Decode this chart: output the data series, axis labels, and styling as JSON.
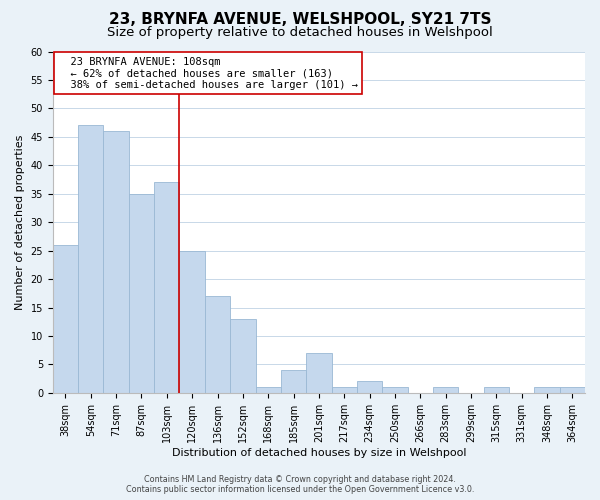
{
  "title": "23, BRYNFA AVENUE, WELSHPOOL, SY21 7TS",
  "subtitle": "Size of property relative to detached houses in Welshpool",
  "xlabel": "Distribution of detached houses by size in Welshpool",
  "ylabel": "Number of detached properties",
  "footer_line1": "Contains HM Land Registry data © Crown copyright and database right 2024.",
  "footer_line2": "Contains public sector information licensed under the Open Government Licence v3.0.",
  "bar_labels": [
    "38sqm",
    "54sqm",
    "71sqm",
    "87sqm",
    "103sqm",
    "120sqm",
    "136sqm",
    "152sqm",
    "168sqm",
    "185sqm",
    "201sqm",
    "217sqm",
    "234sqm",
    "250sqm",
    "266sqm",
    "283sqm",
    "299sqm",
    "315sqm",
    "331sqm",
    "348sqm",
    "364sqm"
  ],
  "bar_values": [
    26,
    47,
    46,
    35,
    37,
    25,
    17,
    13,
    1,
    4,
    7,
    1,
    2,
    1,
    0,
    1,
    0,
    1,
    0,
    1,
    1
  ],
  "bar_color": "#c5d8ed",
  "bar_edge_color": "#9ab8d4",
  "vline_x": 4.5,
  "vline_color": "#cc0000",
  "annotation_title": "23 BRYNFA AVENUE: 108sqm",
  "annotation_line1": "← 62% of detached houses are smaller (163)",
  "annotation_line2": "38% of semi-detached houses are larger (101) →",
  "annotation_box_edge": "#cc0000",
  "annotation_box_bg": "#ffffff",
  "ylim": [
    0,
    60
  ],
  "yticks": [
    0,
    5,
    10,
    15,
    20,
    25,
    30,
    35,
    40,
    45,
    50,
    55,
    60
  ],
  "grid_color": "#c8d8e8",
  "background_color": "#eaf2f8",
  "plot_bg_color": "#ffffff",
  "title_fontsize": 11,
  "subtitle_fontsize": 9.5,
  "axis_fontsize": 8,
  "tick_fontsize": 7,
  "annotation_fontsize": 7.5,
  "footer_fontsize": 5.8
}
